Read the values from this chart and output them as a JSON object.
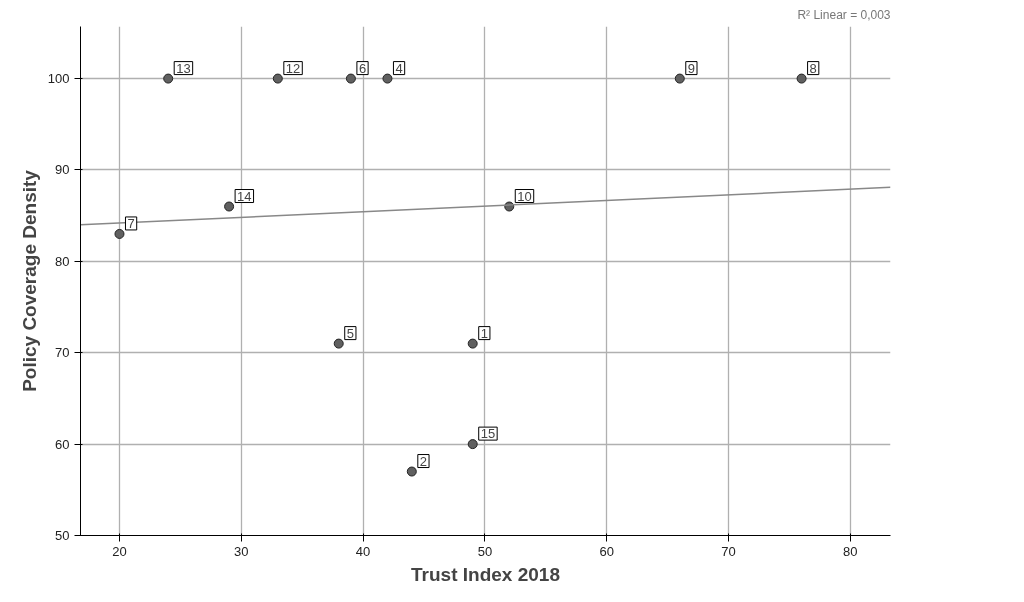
{
  "chart_data": {
    "type": "scatter",
    "xlabel": "Trust Index 2018",
    "ylabel": "Policy Coverage Density",
    "xlim": [
      16.8,
      83.3
    ],
    "ylim": [
      50,
      105.7
    ],
    "xticks": [
      20,
      30,
      40,
      50,
      60,
      70,
      80
    ],
    "yticks": [
      50,
      60,
      70,
      80,
      90,
      100
    ],
    "grid": true,
    "series": [
      {
        "marker": "circle",
        "color": "#606060",
        "x": [
          49,
          44,
          42,
          38,
          39,
          20,
          76,
          66,
          52,
          33,
          24,
          29,
          49
        ],
        "values": [
          71,
          57,
          100,
          71,
          100,
          83,
          100,
          100,
          86,
          100,
          100,
          86,
          60
        ]
      },
      {
        "type": "line",
        "color": "#888888",
        "x": [
          16.8,
          83.3
        ],
        "values": [
          84.0,
          88.1
        ]
      }
    ],
    "annotations": [
      {
        "text": "1",
        "x": 49,
        "y": 71
      },
      {
        "text": "2",
        "x": 44,
        "y": 57
      },
      {
        "text": "4",
        "x": 42,
        "y": 100
      },
      {
        "text": "5",
        "x": 38,
        "y": 71
      },
      {
        "text": "6",
        "x": 39,
        "y": 100
      },
      {
        "text": "7",
        "x": 20,
        "y": 83
      },
      {
        "text": "8",
        "x": 76,
        "y": 100
      },
      {
        "text": "9",
        "x": 66,
        "y": 100
      },
      {
        "text": "10",
        "x": 52,
        "y": 86
      },
      {
        "text": "12",
        "x": 33,
        "y": 100
      },
      {
        "text": "13",
        "x": 24,
        "y": 100
      },
      {
        "text": "14",
        "x": 29,
        "y": 86
      },
      {
        "text": "15",
        "x": 49,
        "y": 60
      },
      "R² Linear = 0,003"
    ]
  }
}
